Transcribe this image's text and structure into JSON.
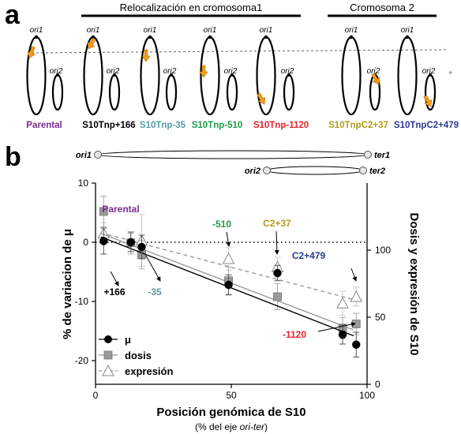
{
  "panel_a": {
    "label": "a",
    "group1_title": "Relocalización en cromosoma1",
    "group2_title": "Cromosoma 2",
    "ori1": "ori1",
    "ori2": "ori2",
    "asterisk": "*",
    "strains": [
      {
        "name": "Parental",
        "color": "#7b2d91"
      },
      {
        "name": "S10Tnp+166",
        "color": "#000000"
      },
      {
        "name": "S10Tnp-35",
        "color": "#5a9aa0"
      },
      {
        "name": "S10Tnp-510",
        "color": "#1e9a4a"
      },
      {
        "name": "S10Tnp-1120",
        "color": "#e8242a"
      },
      {
        "name": "S10TnpC2+37",
        "color": "#b39b1a"
      },
      {
        "name": "S10TnpC2+479",
        "color": "#2b3a8f"
      }
    ]
  },
  "panel_b": {
    "label": "b",
    "ori1": "ori1",
    "ter1": "ter1",
    "ori2": "ori2",
    "ter2": "ter2",
    "annotations": [
      {
        "text": "Parental",
        "color": "#7b2d91"
      },
      {
        "text": "+166",
        "color": "#000000"
      },
      {
        "text": "-35",
        "color": "#5a9aa0"
      },
      {
        "text": "-510",
        "color": "#1e9a4a"
      },
      {
        "text": "C2+37",
        "color": "#b39b1a"
      },
      {
        "text": "C2+479",
        "color": "#2b3a8f"
      },
      {
        "text": "-1120",
        "color": "#e8242a"
      }
    ],
    "legend": {
      "mu": "μ",
      "dosis": "dosis",
      "expresion": "expresión"
    }
  },
  "chart_data": {
    "type": "scatter",
    "xlabel": "Posición genómica de S10",
    "xlabel_sub_prefix": "(% del eje ",
    "xlabel_sub_italic": "ori-ter",
    "xlabel_sub_suffix": ")",
    "ylabel": "% de variacion de μ",
    "y2label": "Dosis y expresión de S10",
    "xlim": [
      0,
      100
    ],
    "ylim": [
      -24,
      10
    ],
    "y2lim": [
      0,
      150
    ],
    "xticks": [
      "0",
      "50",
      "100"
    ],
    "yticks": [
      "10",
      "0",
      "-10",
      "-20"
    ],
    "y2ticks": [
      "100",
      "50",
      "0"
    ],
    "series": [
      {
        "name": "μ",
        "axis": "left",
        "x": [
          3,
          13,
          17,
          49,
          67,
          91,
          96
        ],
        "y": [
          0.2,
          0.0,
          -0.8,
          -7.2,
          -5.2,
          -15.6,
          -17.3
        ],
        "yerr": [
          2.2,
          1.6,
          2.0,
          1.7,
          1.3,
          1.6,
          2.1
        ],
        "fit": [
          [
            2,
            0.9
          ],
          [
            95,
            -15.8
          ]
        ]
      },
      {
        "name": "dosis",
        "axis": "left",
        "x": [
          3,
          13,
          17,
          49,
          67,
          91,
          96
        ],
        "y": [
          5.2,
          -0.1,
          -2.1,
          -6.5,
          -9.2,
          -14.5,
          -13.8
        ],
        "yerr": [
          2.6,
          1.9,
          2.4,
          2.3,
          2.2,
          1.8,
          1.8
        ],
        "fit": [
          [
            2,
            1.5
          ],
          [
            95,
            -14.8
          ]
        ]
      },
      {
        "name": "expresión",
        "axis": "left",
        "x": [
          3,
          17,
          49,
          67,
          91,
          96
        ],
        "y": [
          1.5,
          0.3,
          -2.8,
          -4.2,
          -10.3,
          -9.2
        ],
        "yerr": [
          1.8,
          4.4,
          1.9,
          1.7,
          2.0,
          1.6
        ],
        "fit": [
          [
            2,
            1.6
          ],
          [
            96,
            -9.8
          ]
        ]
      }
    ],
    "hline_y": 0,
    "grid": false
  }
}
